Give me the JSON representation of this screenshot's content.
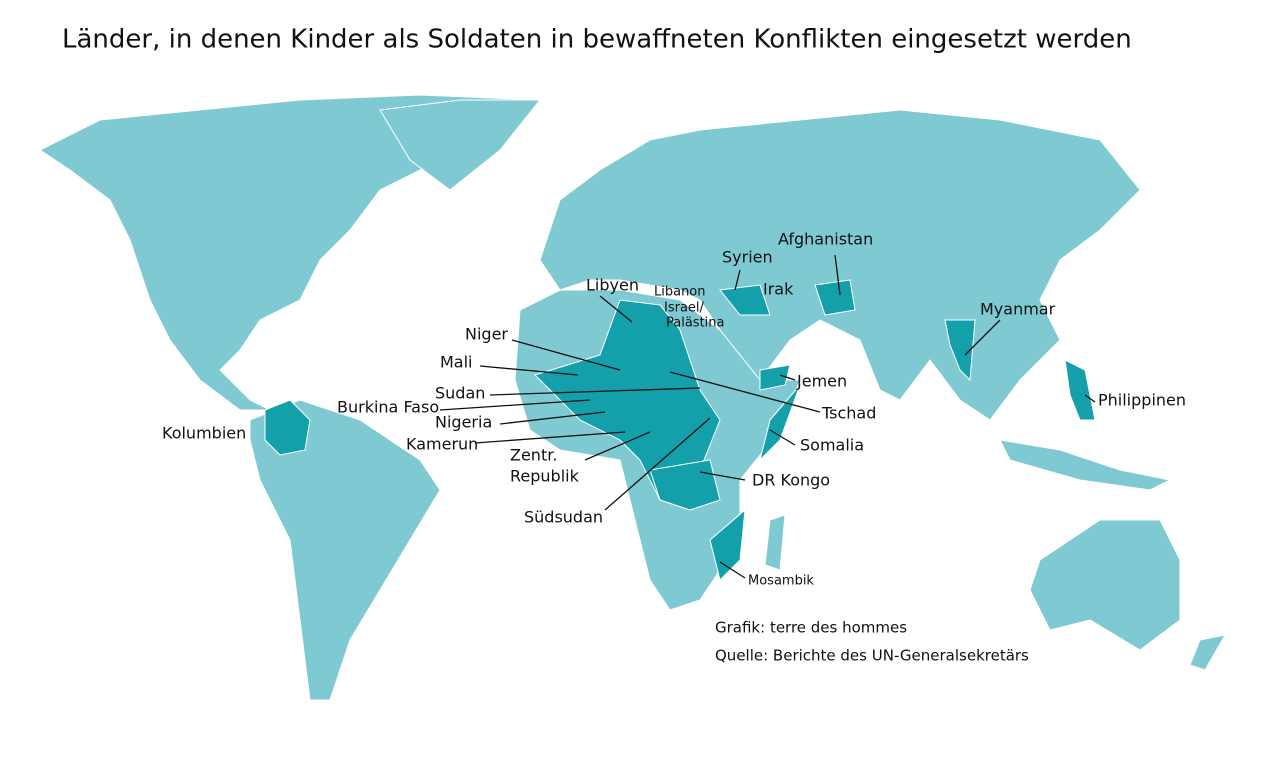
{
  "title": "Länder, in denen Kinder als Soldaten in bewaffneten Konflikten eingesetzt werden",
  "labels": [
    "Afghanistan",
    "Syrien",
    "Libyen",
    "Libanon",
    "Israel/",
    "Palästina",
    "Irak",
    "Myanmar",
    "Niger",
    "Mali",
    "Sudan",
    "Burkina Faso",
    "Nigeria",
    "Kamerun",
    "Jemen",
    "Tschad",
    "Somalia",
    "Philippinen",
    "Kolumbien",
    "Zentr.",
    "Republik",
    "DR Kongo",
    "Südsudan",
    "Mosambik"
  ],
  "credits": [
    "Grafik: terre des hommes",
    "Quelle: Berichte des UN-Generalsekretärs"
  ]
}
